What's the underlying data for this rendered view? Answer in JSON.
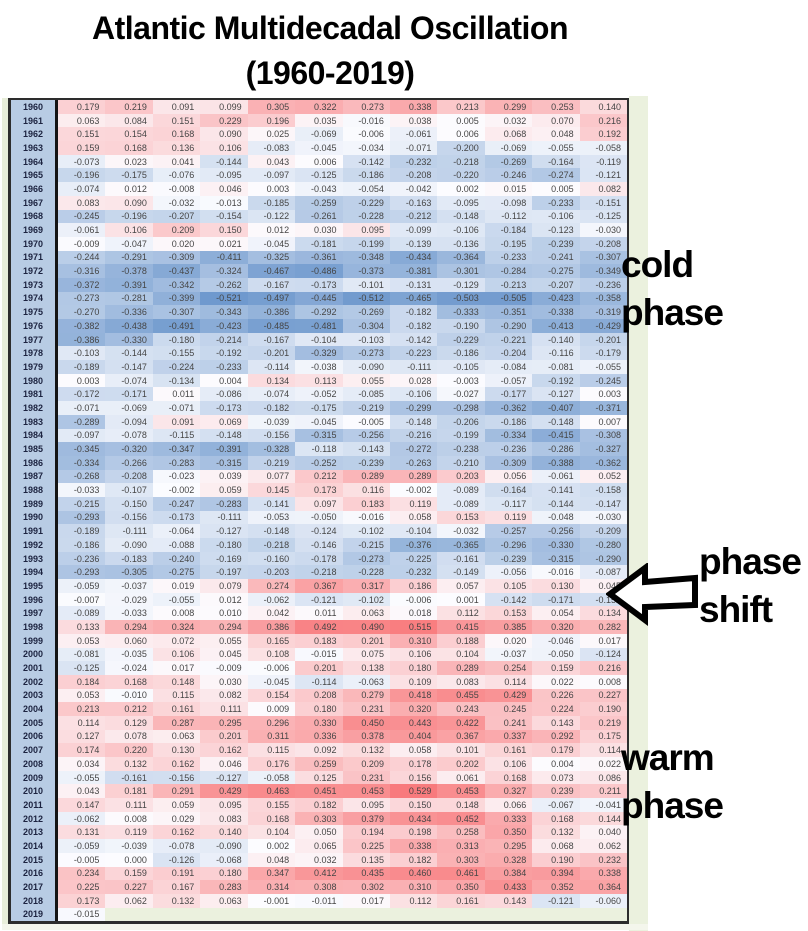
{
  "title": {
    "line1": "Atlantic Multidecadal Oscillation",
    "line2": "(1960-2019)"
  },
  "annotations": {
    "cold": {
      "line1": "cold",
      "line2": "phase"
    },
    "shift": {
      "line1": "phase",
      "line2": "shift"
    },
    "warm": {
      "line1": "warm",
      "line2": "phase"
    },
    "arrow_icon": "left-block-arrow"
  },
  "colors": {
    "year_column_bg": "#b8cce4",
    "empty_cell_bg": "#ebf1de",
    "sheet_strip_green": "#ebf1de",
    "table_border": "#2d2d2d",
    "scale_negative": "#5A8AC6",
    "scale_neutral": "#FCFCFF",
    "scale_positive": "#F8696B"
  },
  "chart_data": {
    "type": "heatmap",
    "title": "Atlantic Multidecadal Oscillation (1960-2019)",
    "n_columns": 12,
    "columns_labeled": false,
    "value_range_observed": [
      -0.521,
      0.529
    ],
    "color_scale": {
      "min_color": "#5A8AC6",
      "mid_color": "#FCFCFF",
      "max_color": "#F8696B",
      "midpoint": 0,
      "interp_span": 0.6
    },
    "years": [
      1960,
      1961,
      1962,
      1963,
      1964,
      1965,
      1966,
      1967,
      1968,
      1969,
      1970,
      1971,
      1972,
      1973,
      1974,
      1975,
      1976,
      1977,
      1978,
      1979,
      1980,
      1981,
      1982,
      1983,
      1984,
      1985,
      1986,
      1987,
      1988,
      1989,
      1990,
      1991,
      1992,
      1993,
      1994,
      1995,
      1996,
      1997,
      1998,
      1999,
      2000,
      2001,
      2002,
      2003,
      2004,
      2005,
      2006,
      2007,
      2008,
      2009,
      2010,
      2011,
      2012,
      2013,
      2014,
      2015,
      2016,
      2017,
      2018,
      2019
    ],
    "values": [
      [
        0.179,
        0.219,
        0.091,
        0.099,
        0.305,
        0.322,
        0.273,
        0.338,
        0.213,
        0.299,
        0.253,
        0.14
      ],
      [
        0.063,
        0.084,
        0.151,
        0.229,
        0.196,
        0.035,
        -0.016,
        0.038,
        0.005,
        0.032,
        0.07,
        0.216
      ],
      [
        0.151,
        0.154,
        0.168,
        0.09,
        0.025,
        -0.069,
        -0.006,
        -0.061,
        0.006,
        0.068,
        0.048,
        0.192
      ],
      [
        0.159,
        0.168,
        0.136,
        0.106,
        -0.083,
        -0.045,
        -0.034,
        -0.071,
        -0.2,
        -0.069,
        -0.055,
        -0.058
      ],
      [
        -0.073,
        0.023,
        0.041,
        -0.144,
        0.043,
        0.006,
        -0.142,
        -0.232,
        -0.218,
        -0.269,
        -0.164,
        -0.119
      ],
      [
        -0.196,
        -0.175,
        -0.076,
        -0.095,
        -0.097,
        -0.125,
        -0.186,
        -0.208,
        -0.22,
        -0.246,
        -0.274,
        -0.121
      ],
      [
        -0.074,
        0.012,
        -0.008,
        0.046,
        0.003,
        -0.043,
        -0.054,
        -0.042,
        0.002,
        0.015,
        0.005,
        0.082
      ],
      [
        0.083,
        0.09,
        -0.032,
        -0.013,
        -0.185,
        -0.259,
        -0.229,
        -0.163,
        -0.095,
        -0.098,
        -0.233,
        -0.151
      ],
      [
        -0.245,
        -0.196,
        -0.207,
        -0.154,
        -0.122,
        -0.261,
        -0.228,
        -0.212,
        -0.148,
        -0.112,
        -0.106,
        -0.125
      ],
      [
        -0.061,
        0.106,
        0.209,
        0.15,
        0.012,
        0.03,
        0.095,
        -0.099,
        -0.106,
        -0.184,
        -0.123,
        -0.03
      ],
      [
        -0.009,
        -0.047,
        0.02,
        0.021,
        -0.045,
        -0.181,
        -0.199,
        -0.139,
        -0.136,
        -0.195,
        -0.239,
        -0.208
      ],
      [
        -0.244,
        -0.291,
        -0.309,
        -0.411,
        -0.325,
        -0.361,
        -0.348,
        -0.434,
        -0.364,
        -0.233,
        -0.241,
        -0.307
      ],
      [
        -0.316,
        -0.378,
        -0.437,
        -0.324,
        -0.467,
        -0.486,
        -0.373,
        -0.381,
        -0.301,
        -0.284,
        -0.275,
        -0.349
      ],
      [
        -0.372,
        -0.391,
        -0.342,
        -0.262,
        -0.167,
        -0.173,
        -0.101,
        -0.131,
        -0.129,
        -0.213,
        -0.207,
        -0.236
      ],
      [
        -0.273,
        -0.281,
        -0.399,
        -0.521,
        -0.497,
        -0.445,
        -0.512,
        -0.465,
        -0.503,
        -0.505,
        -0.423,
        -0.358
      ],
      [
        -0.27,
        -0.336,
        -0.307,
        -0.343,
        -0.386,
        -0.292,
        -0.269,
        -0.182,
        -0.333,
        -0.351,
        -0.338,
        -0.319
      ],
      [
        -0.382,
        -0.438,
        -0.491,
        -0.423,
        -0.485,
        -0.481,
        -0.304,
        -0.182,
        -0.19,
        -0.29,
        -0.413,
        -0.429
      ],
      [
        -0.386,
        -0.33,
        -0.18,
        -0.214,
        -0.167,
        -0.104,
        -0.103,
        -0.142,
        -0.229,
        -0.221,
        -0.14,
        -0.201
      ],
      [
        -0.103,
        -0.144,
        -0.155,
        -0.192,
        -0.201,
        -0.329,
        -0.273,
        -0.223,
        -0.186,
        -0.204,
        -0.116,
        -0.179
      ],
      [
        -0.189,
        -0.147,
        -0.224,
        -0.233,
        -0.114,
        -0.038,
        -0.09,
        -0.111,
        -0.105,
        -0.084,
        -0.081,
        -0.055
      ],
      [
        0.003,
        -0.074,
        -0.134,
        0.004,
        0.134,
        0.113,
        0.055,
        0.028,
        -0.003,
        -0.057,
        -0.192,
        -0.245
      ],
      [
        -0.172,
        -0.171,
        0.011,
        -0.086,
        -0.074,
        -0.052,
        -0.085,
        -0.106,
        -0.027,
        -0.177,
        -0.127,
        0.003
      ],
      [
        -0.071,
        -0.069,
        -0.071,
        -0.173,
        -0.182,
        -0.175,
        -0.219,
        -0.299,
        -0.298,
        -0.362,
        -0.407,
        -0.371
      ],
      [
        -0.289,
        -0.094,
        0.091,
        0.069,
        -0.039,
        -0.045,
        -0.005,
        -0.148,
        -0.206,
        -0.186,
        -0.148,
        0.007
      ],
      [
        -0.097,
        -0.078,
        -0.115,
        -0.148,
        -0.156,
        -0.315,
        -0.256,
        -0.216,
        -0.199,
        -0.334,
        -0.415,
        -0.308
      ],
      [
        -0.345,
        -0.32,
        -0.347,
        -0.391,
        -0.328,
        -0.118,
        -0.143,
        -0.272,
        -0.238,
        -0.236,
        -0.286,
        -0.327
      ],
      [
        -0.334,
        -0.266,
        -0.283,
        -0.315,
        -0.219,
        -0.252,
        -0.239,
        -0.263,
        -0.21,
        -0.309,
        -0.388,
        -0.362
      ],
      [
        -0.268,
        -0.208,
        -0.023,
        0.039,
        0.077,
        0.212,
        0.289,
        0.289,
        0.203,
        0.056,
        -0.061,
        0.052
      ],
      [
        -0.033,
        -0.107,
        -0.002,
        0.059,
        0.145,
        0.173,
        0.116,
        -0.002,
        -0.089,
        -0.164,
        -0.141,
        -0.158
      ],
      [
        -0.215,
        -0.15,
        -0.247,
        -0.283,
        -0.141,
        0.097,
        0.183,
        0.119,
        -0.089,
        -0.117,
        -0.144,
        -0.147
      ],
      [
        -0.293,
        -0.156,
        -0.173,
        -0.111,
        -0.053,
        -0.05,
        -0.016,
        0.058,
        0.153,
        0.119,
        -0.048,
        -0.03
      ],
      [
        -0.189,
        -0.111,
        -0.064,
        -0.127,
        -0.148,
        -0.124,
        -0.102,
        -0.104,
        -0.032,
        -0.257,
        -0.256,
        -0.209
      ],
      [
        -0.186,
        -0.09,
        -0.088,
        -0.18,
        -0.218,
        -0.146,
        -0.215,
        -0.376,
        -0.365,
        -0.296,
        -0.33,
        -0.28
      ],
      [
        -0.236,
        -0.183,
        -0.24,
        -0.169,
        -0.16,
        -0.178,
        -0.273,
        -0.225,
        -0.161,
        -0.239,
        -0.315,
        -0.29
      ],
      [
        -0.293,
        -0.305,
        -0.275,
        -0.197,
        -0.203,
        -0.218,
        -0.228,
        -0.232,
        -0.149,
        -0.056,
        -0.016,
        -0.087
      ],
      [
        -0.059,
        -0.037,
        0.019,
        0.079,
        0.274,
        0.367,
        0.317,
        0.186,
        0.057,
        0.105,
        0.13,
        0.045
      ],
      [
        -0.007,
        -0.029,
        -0.055,
        0.012,
        -0.062,
        -0.121,
        -0.102,
        -0.006,
        0.001,
        -0.142,
        -0.171,
        -0.152
      ],
      [
        -0.089,
        -0.033,
        0.008,
        0.01,
        0.042,
        0.011,
        0.063,
        0.018,
        0.112,
        0.153,
        0.054,
        0.134
      ],
      [
        0.133,
        0.294,
        0.324,
        0.294,
        0.386,
        0.492,
        0.49,
        0.515,
        0.415,
        0.385,
        0.32,
        0.282
      ],
      [
        0.053,
        0.06,
        0.072,
        0.055,
        0.165,
        0.183,
        0.201,
        0.31,
        0.188,
        0.02,
        -0.046,
        0.017
      ],
      [
        -0.081,
        -0.035,
        0.106,
        0.045,
        0.108,
        -0.015,
        0.075,
        0.106,
        0.104,
        -0.037,
        -0.05,
        -0.124
      ],
      [
        -0.125,
        -0.024,
        0.017,
        -0.009,
        -0.006,
        0.201,
        0.138,
        0.18,
        0.289,
        0.254,
        0.159,
        0.216
      ],
      [
        0.184,
        0.168,
        0.148,
        0.03,
        -0.045,
        -0.114,
        -0.063,
        0.109,
        0.083,
        0.114,
        0.022,
        0.008
      ],
      [
        0.053,
        -0.01,
        0.115,
        0.082,
        0.154,
        0.208,
        0.279,
        0.418,
        0.455,
        0.429,
        0.226,
        0.227
      ],
      [
        0.213,
        0.212,
        0.161,
        0.111,
        0.009,
        0.18,
        0.231,
        0.32,
        0.243,
        0.245,
        0.224,
        0.19
      ],
      [
        0.114,
        0.129,
        0.287,
        0.295,
        0.296,
        0.33,
        0.45,
        0.443,
        0.422,
        0.241,
        0.143,
        0.219
      ],
      [
        0.127,
        0.078,
        0.063,
        0.201,
        0.311,
        0.336,
        0.378,
        0.404,
        0.367,
        0.337,
        0.292,
        0.175
      ],
      [
        0.174,
        0.22,
        0.13,
        0.162,
        0.115,
        0.092,
        0.132,
        0.058,
        0.101,
        0.161,
        0.179,
        0.114
      ],
      [
        0.034,
        0.132,
        0.162,
        0.046,
        0.176,
        0.259,
        0.209,
        0.178,
        0.202,
        0.106,
        0.004,
        0.022
      ],
      [
        -0.055,
        -0.161,
        -0.156,
        -0.127,
        -0.058,
        0.125,
        0.231,
        0.156,
        0.061,
        0.168,
        0.073,
        0.086
      ],
      [
        0.043,
        0.181,
        0.291,
        0.429,
        0.463,
        0.451,
        0.453,
        0.529,
        0.453,
        0.327,
        0.239,
        0.211
      ],
      [
        0.147,
        0.111,
        0.059,
        0.095,
        0.155,
        0.182,
        0.095,
        0.15,
        0.148,
        0.066,
        -0.067,
        -0.041
      ],
      [
        -0.062,
        0.008,
        0.029,
        0.083,
        0.168,
        0.303,
        0.379,
        0.434,
        0.452,
        0.333,
        0.168,
        0.144
      ],
      [
        0.131,
        0.119,
        0.162,
        0.14,
        0.104,
        0.05,
        0.194,
        0.198,
        0.258,
        0.35,
        0.132,
        0.04
      ],
      [
        -0.059,
        -0.039,
        -0.078,
        -0.09,
        0.002,
        0.065,
        0.225,
        0.338,
        0.313,
        0.295,
        0.068,
        0.062
      ],
      [
        -0.005,
        0.0,
        -0.126,
        -0.068,
        0.048,
        0.032,
        0.135,
        0.182,
        0.303,
        0.328,
        0.19,
        0.232
      ],
      [
        0.234,
        0.159,
        0.191,
        0.18,
        0.347,
        0.412,
        0.435,
        0.46,
        0.461,
        0.384,
        0.394,
        0.338
      ],
      [
        0.225,
        0.227,
        0.167,
        0.283,
        0.314,
        0.308,
        0.302,
        0.31,
        0.35,
        0.433,
        0.352,
        0.364
      ],
      [
        0.173,
        0.062,
        0.132,
        0.063,
        -0.001,
        -0.011,
        0.017,
        0.112,
        0.161,
        0.143,
        -0.121,
        -0.06
      ],
      [
        -0.015
      ]
    ]
  }
}
